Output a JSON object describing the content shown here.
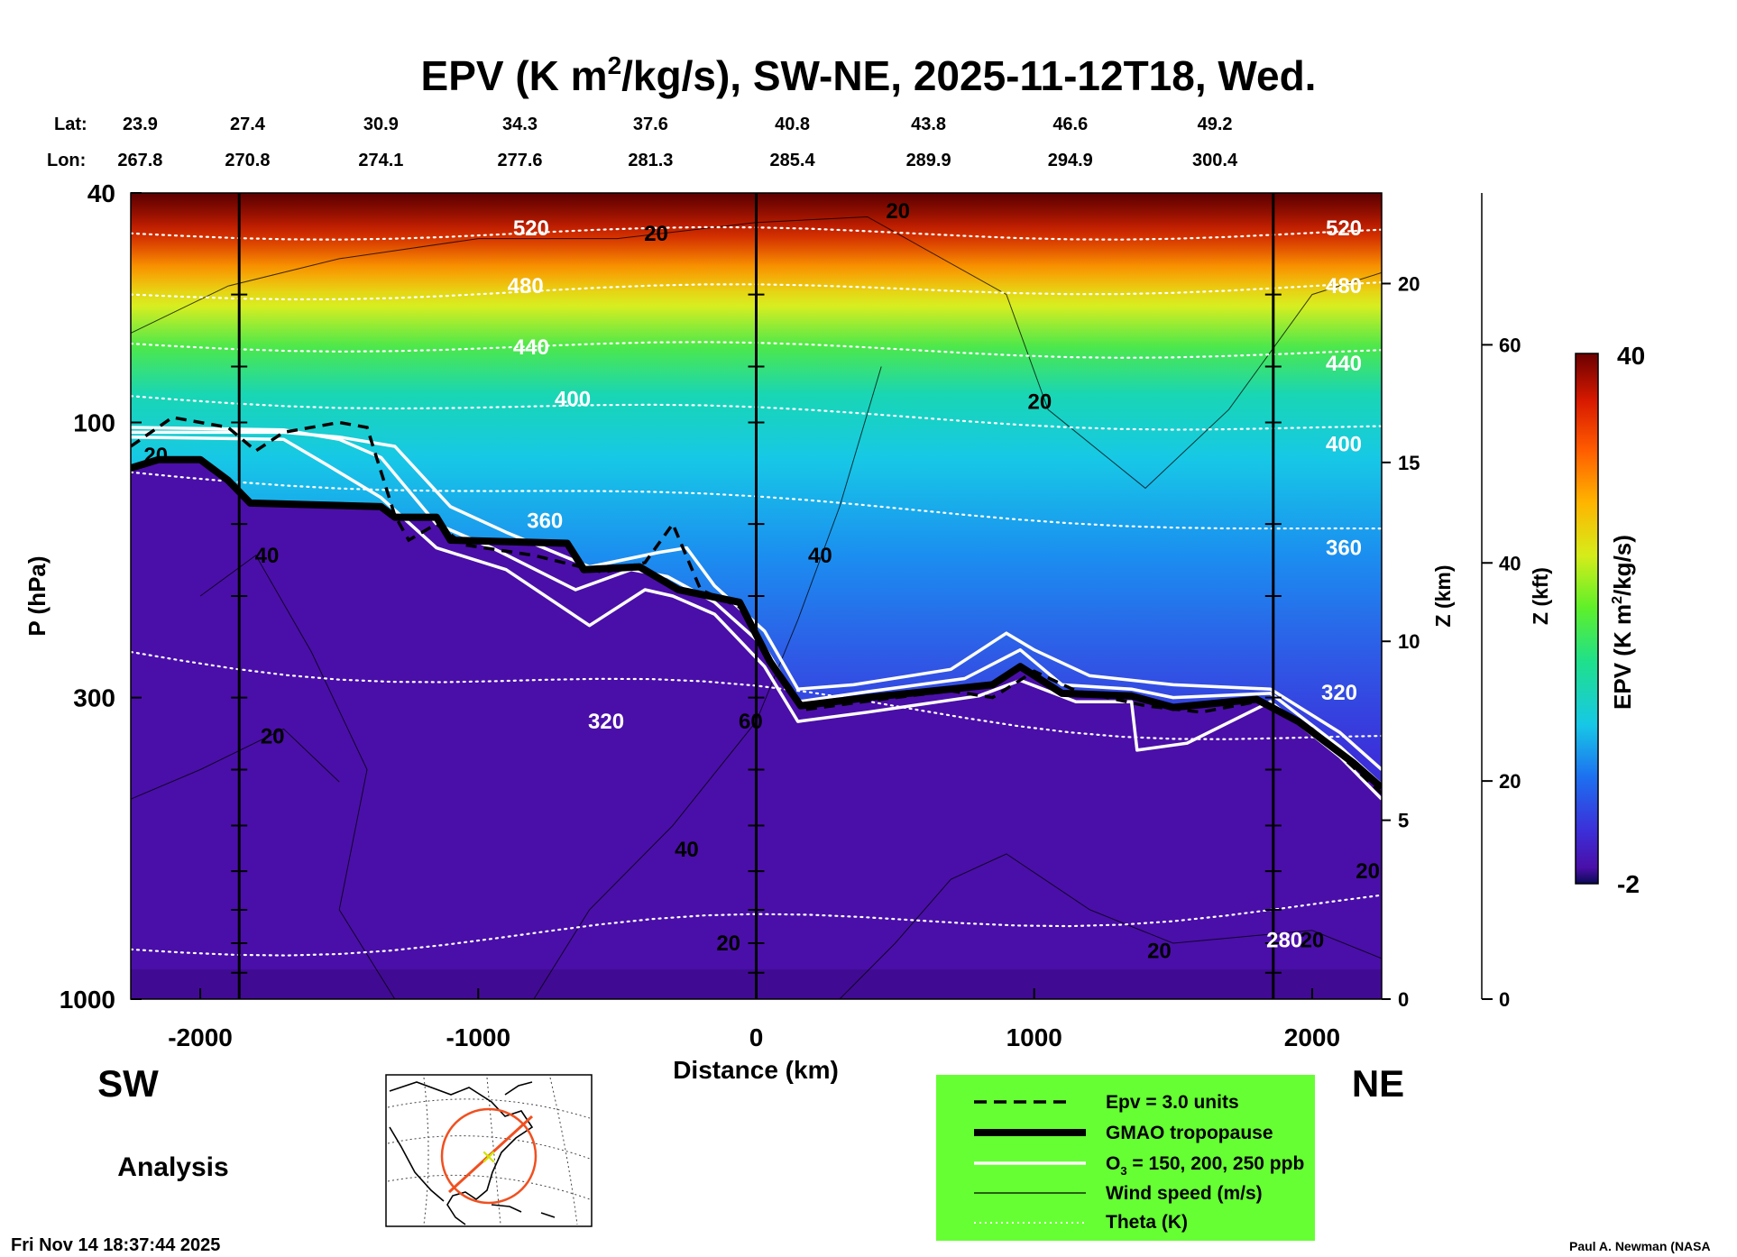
{
  "chart_data": {
    "type": "heatmap",
    "title_main": "EPV (K m",
    "title_sup": "2",
    "title_rest": "/kg/s), SW-NE, 2025-11-12T18, Wed.",
    "lat_label": "Lat:",
    "lon_label": "Lon:",
    "lat_ticks": [
      "23.9",
      "27.4",
      "30.9",
      "34.3",
      "37.6",
      "40.8",
      "43.8",
      "46.6",
      "49.2"
    ],
    "lon_ticks": [
      "267.8",
      "270.8",
      "274.1",
      "277.6",
      "281.3",
      "285.4",
      "289.9",
      "294.9",
      "300.4"
    ],
    "tick_distance_km": [
      -2200,
      -1830,
      -1350,
      -850,
      -380,
      130,
      620,
      1130,
      1650
    ],
    "x_axis": {
      "label": "Distance (km)",
      "range": [
        -2250,
        2250
      ],
      "ticks": [
        -2000,
        -1000,
        0,
        1000,
        2000
      ],
      "tick_labels": [
        "-2000",
        "-1000",
        "0",
        "1000",
        "2000"
      ]
    },
    "y_axis": {
      "label": "P (hPa)",
      "scale": "log",
      "range": [
        1000,
        40
      ],
      "ticks": [
        40,
        100,
        300,
        1000
      ],
      "tick_labels": [
        "40",
        "100",
        "300",
        "1000"
      ]
    },
    "z_km_axis": {
      "label": "Z (km)",
      "ticks": [
        0,
        5,
        10,
        15,
        20
      ],
      "tick_labels": [
        "0",
        "5",
        "10",
        "15",
        "20"
      ]
    },
    "z_kft_axis": {
      "label": "Z (kft)",
      "ticks": [
        0,
        20,
        40,
        60
      ],
      "tick_labels": [
        "0",
        "20",
        "40",
        "60"
      ]
    },
    "vertical_lines_km": [
      -1860,
      0,
      1860
    ],
    "colorbar": {
      "label_a": "EPV (K m",
      "label_sup": "2",
      "label_b": "/kg/s)",
      "min": -2,
      "max": 40,
      "min_label": "-2",
      "max_label": "40"
    },
    "tropopause_gmao": [
      {
        "x": -2250,
        "p": 120
      },
      {
        "x": -2150,
        "p": 116
      },
      {
        "x": -2000,
        "p": 116
      },
      {
        "x": -1900,
        "p": 126
      },
      {
        "x": -1820,
        "p": 138
      },
      {
        "x": -1350,
        "p": 140
      },
      {
        "x": -1300,
        "p": 146
      },
      {
        "x": -1150,
        "p": 146
      },
      {
        "x": -1100,
        "p": 160
      },
      {
        "x": -680,
        "p": 162
      },
      {
        "x": -620,
        "p": 180
      },
      {
        "x": -420,
        "p": 178
      },
      {
        "x": -280,
        "p": 195
      },
      {
        "x": -60,
        "p": 205
      },
      {
        "x": 50,
        "p": 260
      },
      {
        "x": 160,
        "p": 310
      },
      {
        "x": 400,
        "p": 300
      },
      {
        "x": 700,
        "p": 290
      },
      {
        "x": 850,
        "p": 285
      },
      {
        "x": 950,
        "p": 265
      },
      {
        "x": 1100,
        "p": 295
      },
      {
        "x": 1350,
        "p": 298
      },
      {
        "x": 1500,
        "p": 312
      },
      {
        "x": 1800,
        "p": 302
      },
      {
        "x": 1950,
        "p": 330
      },
      {
        "x": 2150,
        "p": 390
      },
      {
        "x": 2250,
        "p": 430
      }
    ],
    "epv_3pvu_dashed": [
      {
        "x": -2250,
        "p": 110
      },
      {
        "x": -2100,
        "p": 98
      },
      {
        "x": -1900,
        "p": 102
      },
      {
        "x": -1800,
        "p": 112
      },
      {
        "x": -1700,
        "p": 104
      },
      {
        "x": -1500,
        "p": 100
      },
      {
        "x": -1400,
        "p": 102
      },
      {
        "x": -1300,
        "p": 145
      },
      {
        "x": -1250,
        "p": 160
      },
      {
        "x": -1150,
        "p": 150
      },
      {
        "x": -1050,
        "p": 163
      },
      {
        "x": -800,
        "p": 170
      },
      {
        "x": -550,
        "p": 182
      },
      {
        "x": -400,
        "p": 175
      },
      {
        "x": -300,
        "p": 150
      },
      {
        "x": -200,
        "p": 195
      },
      {
        "x": -50,
        "p": 210
      },
      {
        "x": 60,
        "p": 262
      },
      {
        "x": 170,
        "p": 315
      },
      {
        "x": 450,
        "p": 302
      },
      {
        "x": 700,
        "p": 292
      },
      {
        "x": 850,
        "p": 300
      },
      {
        "x": 1000,
        "p": 270
      },
      {
        "x": 1150,
        "p": 292
      },
      {
        "x": 1400,
        "p": 310
      },
      {
        "x": 1600,
        "p": 318
      },
      {
        "x": 1800,
        "p": 305
      },
      {
        "x": 2000,
        "p": 340
      },
      {
        "x": 2250,
        "p": 440
      }
    ],
    "ozone_contours_ppb": {
      "150": [
        {
          "x": -2250,
          "p": 104
        },
        {
          "x": -1700,
          "p": 104
        },
        {
          "x": -1500,
          "p": 106
        },
        {
          "x": -1300,
          "p": 110
        },
        {
          "x": -1100,
          "p": 140
        },
        {
          "x": -900,
          "p": 155
        },
        {
          "x": -600,
          "p": 178
        },
        {
          "x": -350,
          "p": 168
        },
        {
          "x": -250,
          "p": 165
        },
        {
          "x": -150,
          "p": 192
        },
        {
          "x": 30,
          "p": 230
        },
        {
          "x": 150,
          "p": 290
        },
        {
          "x": 350,
          "p": 285
        },
        {
          "x": 700,
          "p": 268
        },
        {
          "x": 900,
          "p": 232
        },
        {
          "x": 1000,
          "p": 248
        },
        {
          "x": 1200,
          "p": 275
        },
        {
          "x": 1500,
          "p": 285
        },
        {
          "x": 1850,
          "p": 290
        },
        {
          "x": 2100,
          "p": 345
        },
        {
          "x": 2250,
          "p": 400
        }
      ],
      "200": [
        {
          "x": -2250,
          "p": 102
        },
        {
          "x": -1700,
          "p": 103
        },
        {
          "x": -1500,
          "p": 107
        },
        {
          "x": -1350,
          "p": 115
        },
        {
          "x": -1150,
          "p": 150
        },
        {
          "x": -950,
          "p": 165
        },
        {
          "x": -650,
          "p": 195
        },
        {
          "x": -450,
          "p": 180
        },
        {
          "x": -320,
          "p": 185
        },
        {
          "x": -150,
          "p": 205
        },
        {
          "x": 30,
          "p": 245
        },
        {
          "x": 150,
          "p": 305
        },
        {
          "x": 400,
          "p": 293
        },
        {
          "x": 750,
          "p": 278
        },
        {
          "x": 950,
          "p": 248
        },
        {
          "x": 1100,
          "p": 285
        },
        {
          "x": 1350,
          "p": 290
        },
        {
          "x": 1500,
          "p": 300
        },
        {
          "x": 1850,
          "p": 295
        },
        {
          "x": 2100,
          "p": 365
        },
        {
          "x": 2250,
          "p": 425
        }
      ],
      "250": [
        {
          "x": -2250,
          "p": 106
        },
        {
          "x": -1700,
          "p": 107
        },
        {
          "x": -1550,
          "p": 118
        },
        {
          "x": -1350,
          "p": 135
        },
        {
          "x": -1150,
          "p": 165
        },
        {
          "x": -900,
          "p": 180
        },
        {
          "x": -600,
          "p": 225
        },
        {
          "x": -400,
          "p": 195
        },
        {
          "x": -300,
          "p": 200
        },
        {
          "x": -150,
          "p": 215
        },
        {
          "x": 30,
          "p": 265
        },
        {
          "x": 150,
          "p": 330
        },
        {
          "x": 400,
          "p": 318
        },
        {
          "x": 800,
          "p": 298
        },
        {
          "x": 950,
          "p": 280
        },
        {
          "x": 1150,
          "p": 305
        },
        {
          "x": 1350,
          "p": 305
        },
        {
          "x": 1370,
          "p": 370
        },
        {
          "x": 1550,
          "p": 360
        },
        {
          "x": 1850,
          "p": 305
        },
        {
          "x": 2100,
          "p": 380
        },
        {
          "x": 2250,
          "p": 450
        }
      ]
    },
    "theta_contours": [
      {
        "value": 520,
        "label": "520",
        "left_p": 47,
        "right_p": 47,
        "label_x": -810,
        "label_p": 46,
        "right_label_p": 46
      },
      {
        "value": 480,
        "label": "480",
        "left_p": 60,
        "right_p": 58,
        "label_x": -830,
        "label_p": 58,
        "right_label_p": 58
      },
      {
        "value": 440,
        "label": "440",
        "left_p": 73,
        "right_p": 76,
        "label_x": -810,
        "label_p": 74,
        "right_label_p": 79
      },
      {
        "value": 400,
        "label": "400",
        "left_p": 90,
        "right_p": 103,
        "label_x": -660,
        "label_p": 91,
        "right_label_p": 109
      },
      {
        "value": 360,
        "label": "360",
        "left_p": 122,
        "right_p": 155,
        "label_x": -760,
        "label_p": 148,
        "right_label_p": 165
      },
      {
        "value": 320,
        "label": "320",
        "left_p": 250,
        "right_p": 360,
        "label_x": -540,
        "label_p": 330,
        "right_label_p": 290
      },
      {
        "value": 280,
        "label": "280",
        "left_p": 820,
        "right_p": 680,
        "label_x": 1900,
        "label_p": 790,
        "right_label_p": 790
      }
    ],
    "wind_speed_labels": [
      {
        "text": "20",
        "x": -2160,
        "p": 114
      },
      {
        "text": "20",
        "x": -360,
        "p": 47
      },
      {
        "text": "20",
        "x": 510,
        "p": 43
      },
      {
        "text": "20",
        "x": 1020,
        "p": 92
      },
      {
        "text": "40",
        "x": -1760,
        "p": 170
      },
      {
        "text": "40",
        "x": 230,
        "p": 170
      },
      {
        "text": "60",
        "x": -20,
        "p": 330
      },
      {
        "text": "20",
        "x": -1740,
        "p": 350
      },
      {
        "text": "40",
        "x": -250,
        "p": 550
      },
      {
        "text": "20",
        "x": -100,
        "p": 800
      },
      {
        "text": "20",
        "x": 1450,
        "p": 825
      },
      {
        "text": "20",
        "x": 2200,
        "p": 600
      },
      {
        "text": "20",
        "x": 2000,
        "p": 790
      }
    ]
  },
  "labels": {
    "sw": "SW",
    "ne": "NE",
    "analysis": "Analysis",
    "timestamp": "Fri Nov 14 18:37:44 2025",
    "credit": "Paul A. Newman (NASA"
  },
  "legend": {
    "items": [
      {
        "label": "Epv = 3.0 units"
      },
      {
        "label": "GMAO tropopause"
      },
      {
        "label_a": "O",
        "label_sub": "3",
        "label_b": " = 150, 200, 250 ppb"
      },
      {
        "label": "Wind speed (m/s)"
      },
      {
        "label": "Theta (K)"
      }
    ]
  },
  "colors": {
    "legend_bg": "#66ff33",
    "stratosphere_deep": "#6b0000",
    "troposphere": "#4a0fa8",
    "cyan": "#17c8e6"
  }
}
